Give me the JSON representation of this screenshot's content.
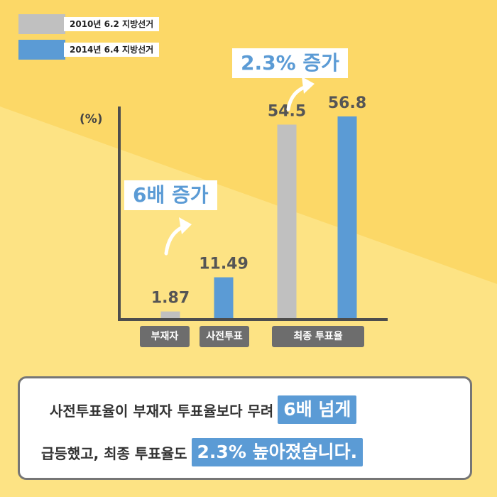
{
  "legend": [
    {
      "label": "2010년 6.2 지방선거",
      "color": "#c0c0c0"
    },
    {
      "label": "2014년 6.4 지방선거",
      "color": "#5b9bd5"
    }
  ],
  "unit_label": "(%)",
  "callouts": {
    "early_vote": "6배 증가",
    "final_turnout": "2.3% 증가"
  },
  "chart_data": {
    "type": "bar",
    "categories": [
      "부재자",
      "사전투표",
      "최종 투표율"
    ],
    "series": [
      {
        "name": "2010년 6.2 지방선거",
        "color": "#c0c0c0",
        "values": [
          1.87,
          null,
          54.5
        ]
      },
      {
        "name": "2014년 6.4 지방선거",
        "color": "#5b9bd5",
        "values": [
          null,
          11.49,
          56.8
        ]
      }
    ],
    "value_labels": [
      "1.87",
      "11.49",
      "54.5",
      "56.8"
    ],
    "ylabel": "(%)",
    "ylim": [
      0,
      60
    ],
    "grid": false,
    "legend_position": "top-left"
  },
  "summary": {
    "line1_text": "사전투표율이 부재자 투표율보다 무려",
    "line1_highlight": "6배 넘게",
    "line2_text": "급등했고, 최종 투표율도",
    "line2_highlight": "2.3% 높아졌습니다."
  }
}
